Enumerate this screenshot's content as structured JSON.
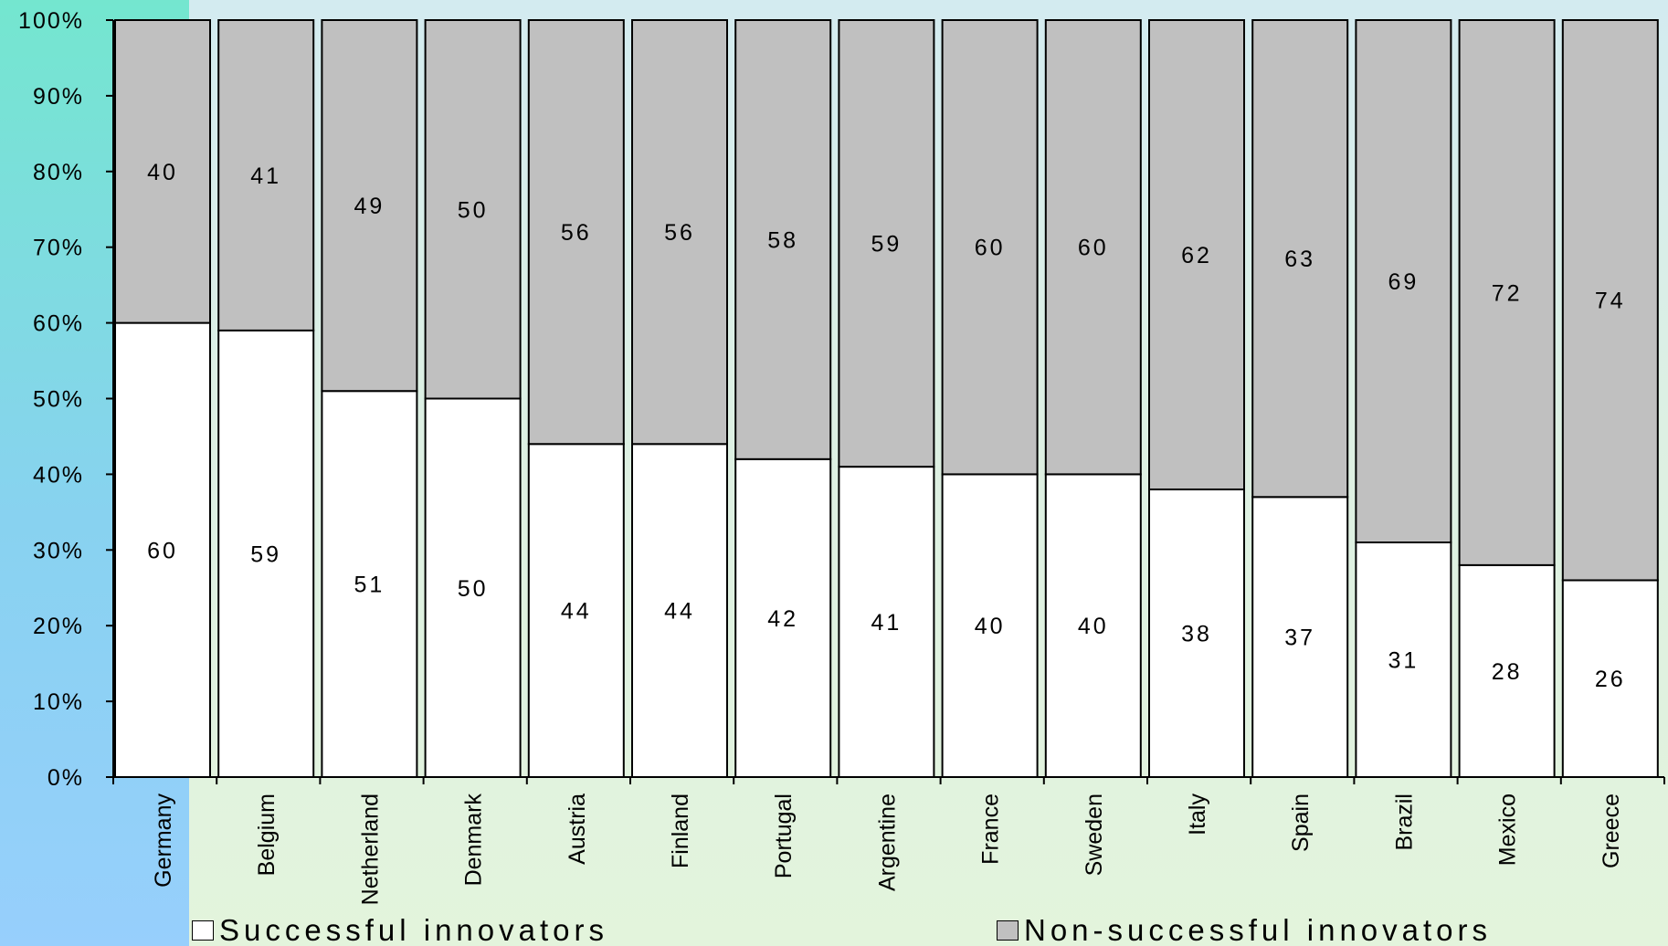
{
  "chart_data": {
    "type": "bar",
    "stacked": true,
    "percent_scale": true,
    "categories": [
      "Germany",
      "Belgium",
      "Netherland",
      "Denmark",
      "Austria",
      "Finland",
      "Portugal",
      "Argentine",
      "France",
      "Sweden",
      "Italy",
      "Spain",
      "Brazil",
      "Mexico",
      "Greece"
    ],
    "series": [
      {
        "name": "Successful innovators",
        "color": "#ffffff",
        "values": [
          60,
          59,
          51,
          50,
          44,
          44,
          42,
          41,
          40,
          40,
          38,
          37,
          31,
          28,
          26
        ]
      },
      {
        "name": "Non-successful innovators",
        "color": "#c0c0c0",
        "values": [
          40,
          41,
          49,
          50,
          56,
          56,
          58,
          59,
          60,
          60,
          62,
          63,
          69,
          72,
          74
        ]
      }
    ],
    "ylim": [
      0,
      100
    ],
    "yticks": [
      "0%",
      "10%",
      "20%",
      "30%",
      "40%",
      "50%",
      "60%",
      "70%",
      "80%",
      "90%",
      "100%"
    ],
    "grid": false,
    "legend_position": "bottom"
  }
}
